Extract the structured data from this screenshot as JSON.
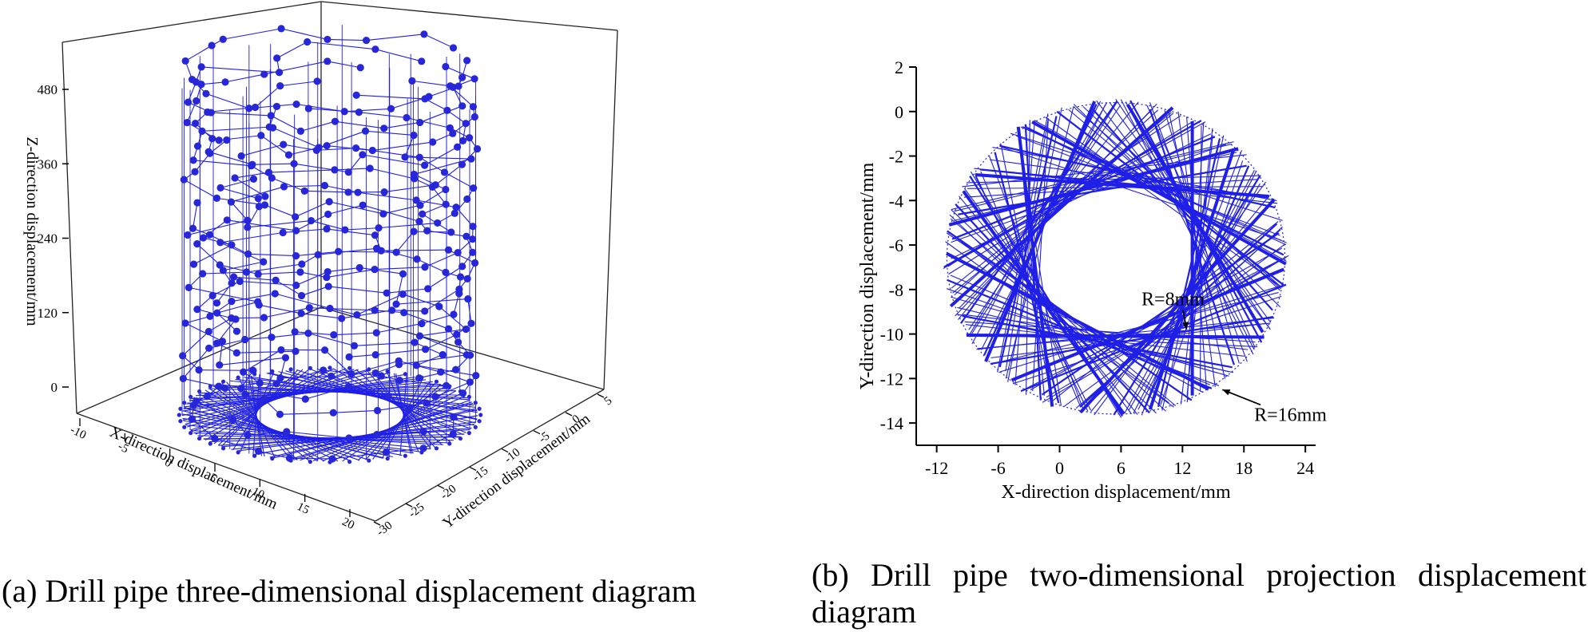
{
  "captions": {
    "a": "(a) Drill pipe three-dimensional displacement diagram",
    "b": "(b) Drill pipe two-dimensional projection displacement diagram"
  },
  "colors": {
    "trajectory": "#1f1fe6",
    "node": "#2727d9",
    "axis": "#000000"
  },
  "chart_data": [
    {
      "type": "scatter",
      "subtype": "3d-line",
      "panel": "a",
      "xlabel": "X-direction displacement/mm",
      "ylabel": "Y-direction displacement/mm",
      "zlabel": "Z-direction displacement/mm",
      "x_ticks": [
        "-10",
        "-5",
        "0",
        "5",
        "10",
        "15",
        "20"
      ],
      "y_ticks": [
        "5",
        "0",
        "-5",
        "-10",
        "-15",
        "-20",
        "-25",
        "-30"
      ],
      "z_ticks": [
        "0",
        "120",
        "240",
        "360",
        "480"
      ],
      "x_range": [
        -10,
        20
      ],
      "y_range": [
        -30,
        5
      ],
      "z_range": [
        0,
        540
      ],
      "pipe_center": [
        5,
        -6
      ],
      "outer_radius": 16,
      "inner_radius": 8,
      "z_levels": [
        0,
        30,
        60,
        90,
        120,
        150,
        180,
        210,
        240,
        270,
        300,
        330,
        360,
        390,
        420,
        450,
        480,
        510
      ],
      "grid": false
    },
    {
      "type": "line",
      "panel": "b",
      "xlabel": "X-direction displacement/mm",
      "ylabel": "Y-direction displacement/mm",
      "x_ticks": [
        -12,
        -6,
        0,
        6,
        12,
        18,
        24
      ],
      "y_ticks": [
        2,
        0,
        -2,
        -4,
        -6,
        -8,
        -10,
        -12,
        -14
      ],
      "xlim": [
        -14,
        25
      ],
      "ylim": [
        -15,
        2
      ],
      "center": [
        5.5,
        -6.6
      ],
      "outer_radius_axes": [
        16.5,
        7.0
      ],
      "inner_radius_axes": [
        8.3,
        3.9
      ],
      "annotations": [
        {
          "text": "R=8mm",
          "x": 8.0,
          "y": -8.7,
          "arrow_to": [
            12.4,
            -9.8
          ]
        },
        {
          "text": "R=16mm",
          "x": 19.0,
          "y": -13.9,
          "arrow_to": [
            15.9,
            -12.5
          ]
        }
      ],
      "grid": false
    }
  ]
}
